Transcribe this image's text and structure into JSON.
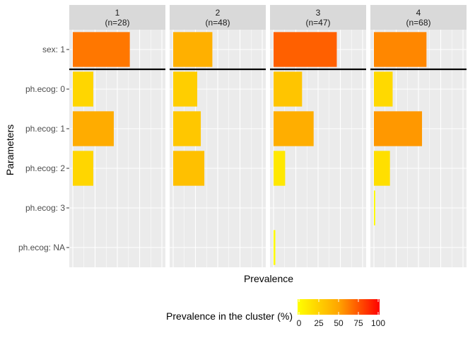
{
  "chart_data": {
    "type": "bar",
    "orientation": "horizontal",
    "facets": [
      {
        "label": "1",
        "sublabel": "(n=28)"
      },
      {
        "label": "2",
        "sublabel": "(n=48)"
      },
      {
        "label": "3",
        "sublabel": "(n=47)"
      },
      {
        "label": "4",
        "sublabel": "(n=68)"
      }
    ],
    "categories": [
      "sex: 1",
      "ph.ecog: 0",
      "ph.ecog: 1",
      "ph.ecog: 2",
      "ph.ecog: 3",
      "ph.ecog: NA"
    ],
    "series": [
      {
        "values": [
          64,
          23,
          46,
          23,
          0,
          0
        ]
      },
      {
        "values": [
          44,
          27,
          31,
          35,
          0,
          0
        ]
      },
      {
        "values": [
          71,
          32,
          45,
          13,
          0,
          2
        ]
      },
      {
        "values": [
          59,
          21,
          54,
          18,
          1.5,
          0
        ]
      }
    ],
    "xlim": [
      0,
      100
    ],
    "xlabel": "Prevalence",
    "ylabel": "Parameters",
    "separator_after_category": "sex: 1",
    "grid": true,
    "legend": {
      "title": "Prevalence in the cluster (%)",
      "position": "bottom",
      "ticks": [
        0,
        25,
        50,
        75,
        100
      ],
      "colors": [
        "#FFFF00",
        "#FFA500",
        "#FF0000"
      ]
    }
  }
}
